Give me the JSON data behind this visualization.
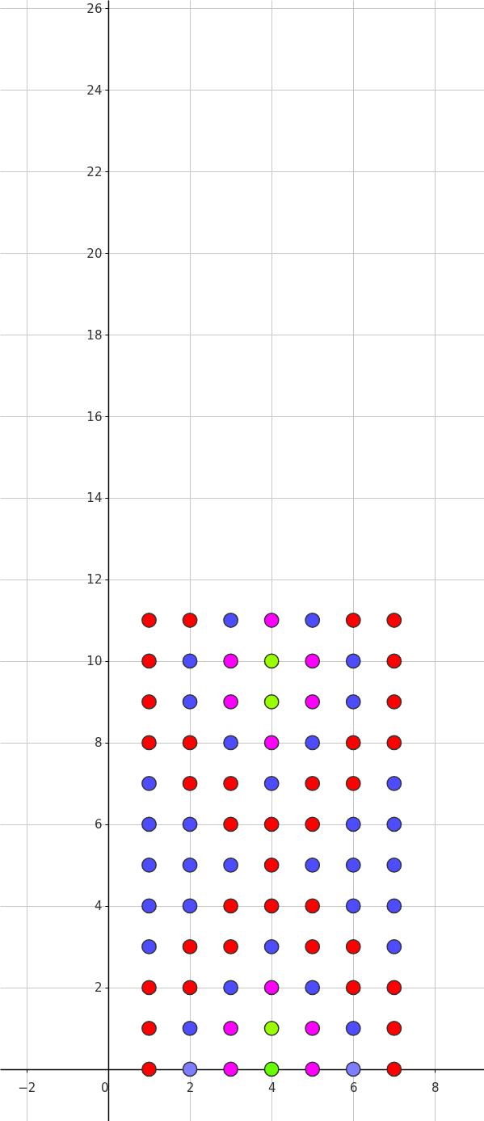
{
  "chart_data": {
    "type": "scatter",
    "marker": "circle",
    "grid": true,
    "xlim": [
      -2.65,
      9.2
    ],
    "ylim": [
      -1.27,
      26.2
    ],
    "xticks": [
      -2,
      0,
      2,
      4,
      6,
      8
    ],
    "yticks": [
      {
        "value": 0,
        "label": null
      },
      2,
      4,
      6,
      8,
      10,
      12,
      14,
      16,
      18,
      20,
      22,
      24,
      26
    ],
    "series": [
      {
        "color": "#ff0000",
        "x": [
          1,
          2,
          6,
          7,
          1,
          7,
          1,
          7,
          1,
          2,
          6,
          7,
          2,
          3,
          5,
          6,
          3,
          4,
          5,
          4,
          3,
          4,
          5,
          2,
          3,
          5,
          6,
          1,
          2,
          6,
          7,
          1,
          7,
          1,
          7
        ],
        "values": [
          11,
          11,
          11,
          11,
          10,
          10,
          9,
          9,
          8,
          8,
          8,
          8,
          7,
          7,
          7,
          7,
          6,
          6,
          6,
          5,
          4,
          4,
          4,
          3,
          3,
          3,
          3,
          2,
          2,
          2,
          2,
          1,
          1,
          0,
          0
        ]
      },
      {
        "color": "#4d4dff",
        "x": [
          3,
          5,
          2,
          6,
          2,
          6,
          3,
          5,
          1,
          4,
          7,
          1,
          2,
          6,
          7,
          1,
          2,
          3,
          5,
          6,
          7,
          1,
          2,
          6,
          7,
          1,
          4,
          7,
          3,
          5,
          2,
          6
        ],
        "values": [
          11,
          11,
          10,
          10,
          9,
          9,
          8,
          8,
          7,
          7,
          7,
          6,
          6,
          6,
          6,
          5,
          5,
          5,
          5,
          5,
          5,
          4,
          4,
          4,
          4,
          3,
          3,
          3,
          2,
          2,
          1,
          1
        ]
      },
      {
        "color": "#ff00ff",
        "x": [
          4,
          3,
          5,
          3,
          5,
          4,
          4,
          3,
          5,
          3,
          5
        ],
        "values": [
          11,
          10,
          10,
          9,
          9,
          8,
          2,
          1,
          1,
          0,
          0
        ]
      },
      {
        "color": "#99ff00",
        "x": [
          4,
          4,
          4
        ],
        "values": [
          10,
          9,
          1
        ]
      },
      {
        "color": "#66ff00",
        "x": [
          4
        ],
        "values": [
          0
        ]
      },
      {
        "color": "#7d7dff",
        "x": [
          2,
          6
        ],
        "values": [
          0,
          0
        ]
      }
    ]
  }
}
